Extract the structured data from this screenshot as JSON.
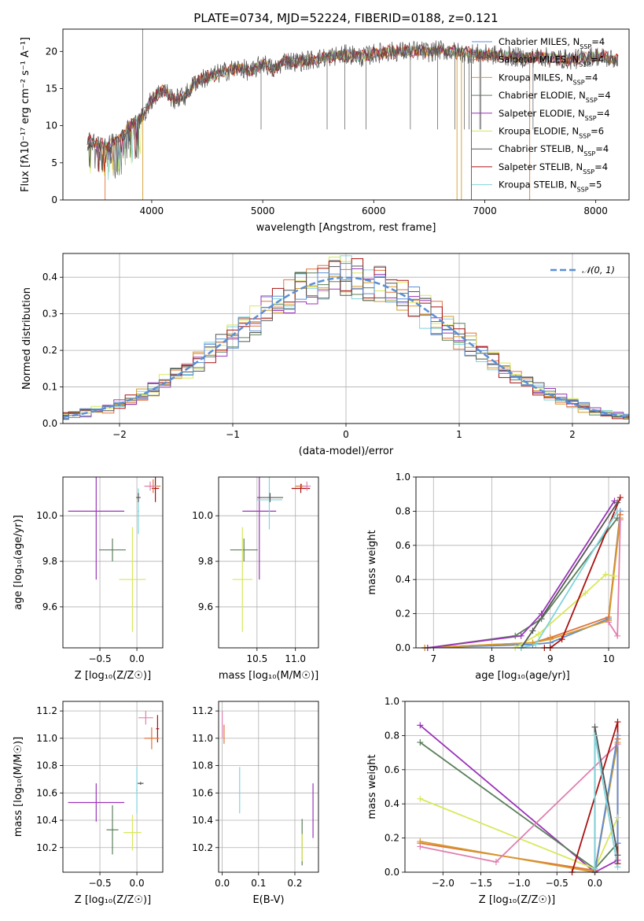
{
  "figure_title": "PLATE=0734, MJD=52224, FIBERID=0188, z=0.121",
  "colors": {
    "chabrier_miles": "#5b8fd4",
    "salpeter_miles": "#e0733a",
    "kroupa_miles": "#d49a2a",
    "chabrier_elodie": "#5a7f5a",
    "salpeter_elodie": "#9b34b8",
    "kroupa_elodie": "#d8e85a",
    "chabrier_stelib": "#555555",
    "salpeter_stelib": "#aa1111",
    "kroupa_stelib": "#7fd4dc",
    "pink": "#e080b0",
    "normal": "#5b8fd4",
    "grid": "#b0b0b0"
  },
  "chart_data": [
    {
      "id": "spectrum",
      "type": "line",
      "title": "PLATE=0734, MJD=52224, FIBERID=0188, z=0.121",
      "xlabel": "wavelength [Angstrom, rest frame]",
      "ylabel": "Flux [fλ10⁻¹⁷ erg cm⁻² s⁻¹ A⁻¹]",
      "xlim": [
        3200,
        8300
      ],
      "ylim": [
        0,
        23
      ],
      "xticks": [
        4000,
        5000,
        6000,
        7000,
        8000
      ],
      "yticks": [
        0,
        5,
        10,
        15,
        20
      ],
      "grid": false,
      "legend_position": "right",
      "legend": [
        {
          "label": "Chabrier MILES, N_SSP=4",
          "color_key": "chabrier_miles"
        },
        {
          "label": "Salpeter MILES, N_SSP=4",
          "color_key": "salpeter_miles"
        },
        {
          "label": "Kroupa MILES, N_SSP=4",
          "color_key": "kroupa_miles"
        },
        {
          "label": "Chabrier ELODIE, N_SSP=4",
          "color_key": "chabrier_elodie"
        },
        {
          "label": "Salpeter ELODIE, N_SSP=4",
          "color_key": "salpeter_elodie"
        },
        {
          "label": "Kroupa ELODIE, N_SSP=6",
          "color_key": "kroupa_elodie"
        },
        {
          "label": "Chabrier STELIB, N_SSP=4",
          "color_key": "chabrier_stelib"
        },
        {
          "label": "Salpeter STELIB, N_SSP=4",
          "color_key": "salpeter_stelib"
        },
        {
          "label": "Kroupa STELIB, N_SSP=5",
          "color_key": "kroupa_stelib"
        }
      ],
      "envelope": {
        "x": [
          3420,
          3500,
          3600,
          3700,
          3800,
          3900,
          4000,
          4100,
          4200,
          4300,
          4400,
          4500,
          4600,
          4700,
          4800,
          4900,
          5000,
          5100,
          5200,
          5300,
          5400,
          5500,
          5600,
          5700,
          5800,
          5900,
          6000,
          6100,
          6200,
          6300,
          6400,
          6500,
          6600,
          6700,
          6800,
          6900,
          7000,
          7100,
          7200,
          7300,
          7400,
          7500,
          7600,
          7700,
          7800,
          7900,
          8000,
          8100,
          8200
        ],
        "y": [
          8.0,
          7.5,
          7.2,
          8.2,
          10.0,
          11.0,
          13.5,
          15.0,
          13.5,
          14.0,
          16.0,
          16.5,
          17.0,
          17.5,
          17.8,
          17.2,
          18.5,
          17.5,
          18.8,
          18.6,
          18.8,
          19.0,
          19.3,
          19.5,
          19.6,
          19.2,
          19.7,
          19.9,
          20.0,
          20.0,
          20.1,
          19.9,
          20.2,
          20.0,
          19.8,
          19.7,
          19.6,
          19.5,
          19.4,
          19.2,
          19.1,
          19.3,
          19.1,
          19.0,
          18.9,
          19.2,
          19.4,
          19.1,
          18.9
        ]
      },
      "spikes_x": [
        3920,
        4985,
        5580,
        5740,
        5930,
        6330,
        6575,
        6730,
        6815,
        6860,
        6955,
        6965,
        7435
      ],
      "drop_x": [
        3580,
        3920,
        6750,
        6790,
        7405,
        6880
      ]
    },
    {
      "id": "residual-hist",
      "type": "line",
      "xlabel": "(data-model)/error",
      "ylabel": "Normed distribution",
      "xlim": [
        -2.5,
        2.5
      ],
      "ylim": [
        0,
        0.465
      ],
      "xticks": [
        -2,
        -1,
        0,
        1,
        2
      ],
      "yticks": [
        0.0,
        0.1,
        0.2,
        0.3,
        0.4
      ],
      "grid": true,
      "legend_position": "top-right",
      "legend": [
        {
          "label": "𝒩(0, 1)",
          "color_key": "normal"
        }
      ],
      "bin_width": 0.1
    },
    {
      "id": "age-vs-z",
      "type": "scatter",
      "xlabel": "Z [log₁₀(Z/Z☉)]",
      "ylabel": "age  [log₁₀(age/yr)]",
      "xlim": [
        -1.0,
        0.35
      ],
      "ylim": [
        9.42,
        10.17
      ],
      "xticks": [
        -0.5,
        0.0
      ],
      "yticks": [
        9.6,
        9.8,
        10.0
      ],
      "grid": true,
      "points": [
        {
          "color_key": "salpeter_elodie",
          "x": -0.55,
          "y": 10.02,
          "xerr": 0.38,
          "yerr": 0.3
        },
        {
          "color_key": "chabrier_elodie",
          "x": -0.33,
          "y": 9.85,
          "xerr": 0.18,
          "yerr": 0.05
        },
        {
          "color_key": "kroupa_elodie",
          "x": -0.06,
          "y": 9.72,
          "xerr": 0.18,
          "yerr": 0.23
        },
        {
          "color_key": "kroupa_stelib",
          "x": 0.02,
          "y": 10.02,
          "xerr": 0.01,
          "yerr": 0.1
        },
        {
          "color_key": "chabrier_stelib",
          "x": 0.02,
          "y": 10.08,
          "xerr": 0.03,
          "yerr": 0.02
        },
        {
          "color_key": "salpeter_stelib",
          "x": 0.25,
          "y": 10.12,
          "xerr": 0.05,
          "yerr": 0.06
        },
        {
          "color_key": "salpeter_miles",
          "x": 0.22,
          "y": 10.13,
          "xerr": 0.1,
          "yerr": 0.03
        },
        {
          "color_key": "pink",
          "x": 0.18,
          "y": 10.13,
          "xerr": 0.08,
          "yerr": 0.02
        }
      ]
    },
    {
      "id": "age-vs-mass",
      "type": "scatter",
      "xlabel": "mass [log₁₀(M/M☉)]",
      "ylabel": "",
      "xlim": [
        10.0,
        11.3
      ],
      "ylim": [
        9.42,
        10.17
      ],
      "xticks": [
        10.5,
        11.0
      ],
      "yticks": [
        9.6,
        9.8,
        10.0
      ],
      "grid": true,
      "points": [
        {
          "color_key": "salpeter_elodie",
          "x": 10.53,
          "y": 10.02,
          "xerr": 0.22,
          "yerr": 0.3
        },
        {
          "color_key": "chabrier_elodie",
          "x": 10.33,
          "y": 9.85,
          "xerr": 0.18,
          "yerr": 0.05
        },
        {
          "color_key": "kroupa_elodie",
          "x": 10.31,
          "y": 9.72,
          "xerr": 0.13,
          "yerr": 0.23
        },
        {
          "color_key": "kroupa_stelib",
          "x": 10.66,
          "y": 10.07,
          "xerr": 0.17,
          "yerr": 0.13
        },
        {
          "color_key": "chabrier_stelib",
          "x": 10.67,
          "y": 10.08,
          "xerr": 0.17,
          "yerr": 0.02
        },
        {
          "color_key": "salpeter_stelib",
          "x": 11.07,
          "y": 10.12,
          "xerr": 0.12,
          "yerr": 0.02
        },
        {
          "color_key": "salpeter_miles",
          "x": 11.08,
          "y": 10.13,
          "xerr": 0.08,
          "yerr": 0.01
        },
        {
          "color_key": "pink",
          "x": 11.15,
          "y": 10.13,
          "xerr": 0.05,
          "yerr": 0.02
        }
      ]
    },
    {
      "id": "massweight-vs-age",
      "type": "line",
      "xlabel": "age  [log₁₀(age/yr)]",
      "ylabel": "mass weight",
      "xlim": [
        6.7,
        10.35
      ],
      "ylim": [
        0,
        1.0
      ],
      "xticks": [
        7,
        8,
        9,
        10
      ],
      "yticks": [
        0.0,
        0.2,
        0.4,
        0.6,
        0.8,
        1.0
      ],
      "grid": true,
      "series": [
        {
          "color_key": "chabrier_miles",
          "x": [
            6.85,
            8.7,
            9.0,
            10.0,
            10.2
          ],
          "y": [
            0.0,
            0.02,
            0.03,
            0.17,
            0.8
          ]
        },
        {
          "color_key": "salpeter_miles",
          "x": [
            6.85,
            8.7,
            9.0,
            10.0,
            10.2
          ],
          "y": [
            0.0,
            0.03,
            0.06,
            0.18,
            0.78
          ]
        },
        {
          "color_key": "kroupa_miles",
          "x": [
            6.85,
            8.7,
            9.0,
            10.0,
            10.2
          ],
          "y": [
            0.0,
            0.03,
            0.05,
            0.16,
            0.76
          ]
        },
        {
          "color_key": "chabrier_elodie",
          "x": [
            6.9,
            8.4,
            8.85,
            10.15
          ],
          "y": [
            0.0,
            0.07,
            0.17,
            0.76
          ]
        },
        {
          "color_key": "salpeter_elodie",
          "x": [
            6.9,
            8.5,
            8.85,
            10.1
          ],
          "y": [
            0.0,
            0.07,
            0.2,
            0.86
          ]
        },
        {
          "color_key": "kroupa_elodie",
          "x": [
            8.4,
            8.8,
            9.6,
            9.95,
            10.1
          ],
          "y": [
            0.0,
            0.08,
            0.32,
            0.43,
            0.42
          ]
        },
        {
          "color_key": "chabrier_stelib",
          "x": [
            8.5,
            8.7,
            10.15
          ],
          "y": [
            0.0,
            0.1,
            0.85
          ]
        },
        {
          "color_key": "salpeter_stelib",
          "x": [
            8.9,
            9.0,
            9.2,
            10.2
          ],
          "y": [
            0.0,
            0.0,
            0.05,
            0.88
          ]
        },
        {
          "color_key": "kroupa_stelib",
          "x": [
            8.5,
            8.75,
            10.15
          ],
          "y": [
            0.0,
            0.02,
            0.8
          ]
        },
        {
          "color_key": "pink",
          "x": [
            10.0,
            10.15,
            10.2
          ],
          "y": [
            0.15,
            0.07,
            0.75
          ]
        }
      ]
    },
    {
      "id": "mass-vs-z",
      "type": "scatter",
      "xlabel": "Z [log₁₀(Z/Z☉)]",
      "ylabel": "mass [log₁₀(M/M☉)]",
      "xlim": [
        -1.0,
        0.35
      ],
      "ylim": [
        10.02,
        11.27
      ],
      "xticks": [
        -0.5,
        0.0
      ],
      "yticks": [
        10.2,
        10.4,
        10.6,
        10.8,
        11.0,
        11.2
      ],
      "grid": true,
      "points": [
        {
          "color_key": "salpeter_elodie",
          "x": -0.55,
          "y": 10.53,
          "xerr": 0.38,
          "yerr": 0.14
        },
        {
          "color_key": "chabrier_elodie",
          "x": -0.33,
          "y": 10.33,
          "xerr": 0.08,
          "yerr": 0.18
        },
        {
          "color_key": "kroupa_elodie",
          "x": -0.06,
          "y": 10.31,
          "xerr": 0.12,
          "yerr": 0.13
        },
        {
          "color_key": "kroupa_stelib",
          "x": 0.0,
          "y": 10.62,
          "xerr": 0.01,
          "yerr": 0.17
        },
        {
          "color_key": "chabrier_stelib",
          "x": 0.05,
          "y": 10.67,
          "xerr": 0.04,
          "yerr": 0.01
        },
        {
          "color_key": "salpeter_stelib",
          "x": 0.28,
          "y": 11.07,
          "xerr": 0.02,
          "yerr": 0.1
        },
        {
          "color_key": "salpeter_miles",
          "x": 0.2,
          "y": 11.0,
          "xerr": 0.1,
          "yerr": 0.08
        },
        {
          "color_key": "pink",
          "x": 0.12,
          "y": 11.15,
          "xerr": 0.1,
          "yerr": 0.05
        }
      ]
    },
    {
      "id": "mass-vs-ebv",
      "type": "scatter",
      "xlabel": "E(B-V)",
      "ylabel": "",
      "xlim": [
        -0.01,
        0.265
      ],
      "ylim": [
        10.02,
        11.27
      ],
      "xticks": [
        0.0,
        0.1,
        0.2
      ],
      "yticks": [
        10.2,
        10.4,
        10.6,
        10.8,
        11.0,
        11.2
      ],
      "grid": true,
      "points": [
        {
          "color_key": "pink",
          "x": 0.0,
          "y": 11.1,
          "xerr": 0,
          "yerr": 0.1
        },
        {
          "color_key": "salpeter_miles",
          "x": 0.005,
          "y": 11.03,
          "xerr": 0,
          "yerr": 0.07
        },
        {
          "color_key": "kroupa_stelib",
          "x": 0.048,
          "y": 10.62,
          "xerr": 0,
          "yerr": 0.17
        },
        {
          "color_key": "chabrier_elodie",
          "x": 0.22,
          "y": 10.24,
          "xerr": 0,
          "yerr": 0.17
        },
        {
          "color_key": "kroupa_elodie",
          "x": 0.22,
          "y": 10.2,
          "xerr": 0,
          "yerr": 0.1
        },
        {
          "color_key": "salpeter_elodie",
          "x": 0.25,
          "y": 10.47,
          "xerr": 0,
          "yerr": 0.2
        }
      ]
    },
    {
      "id": "massweight-vs-z",
      "type": "line",
      "xlabel": "Z [log₁₀(Z/Z☉)]",
      "ylabel": "mass weight",
      "xlim": [
        -2.5,
        0.45
      ],
      "ylim": [
        0,
        1.0
      ],
      "xticks": [
        -2.0,
        -1.5,
        -1.0,
        -0.5,
        0.0
      ],
      "yticks": [
        0.0,
        0.2,
        0.4,
        0.6,
        0.8,
        1.0
      ],
      "grid": true,
      "series": [
        {
          "color_key": "salpeter_elodie",
          "x": [
            -2.3,
            0.0,
            0.3
          ],
          "y": [
            0.86,
            0.0,
            0.07
          ]
        },
        {
          "color_key": "chabrier_elodie",
          "x": [
            -2.3,
            0.0,
            0.3
          ],
          "y": [
            0.76,
            0.02,
            0.17
          ]
        },
        {
          "color_key": "kroupa_elodie",
          "x": [
            -2.3,
            0.0,
            0.3
          ],
          "y": [
            0.43,
            0.02,
            0.32
          ]
        },
        {
          "color_key": "salpeter_miles",
          "x": [
            -2.3,
            0.0,
            0.3
          ],
          "y": [
            0.17,
            0.01,
            0.78
          ]
        },
        {
          "color_key": "kroupa_miles",
          "x": [
            -2.3,
            0.0,
            0.3
          ],
          "y": [
            0.18,
            0.0,
            0.76
          ]
        },
        {
          "color_key": "pink",
          "x": [
            -2.3,
            -1.3,
            0.3
          ],
          "y": [
            0.15,
            0.06,
            0.75
          ]
        },
        {
          "color_key": "salpeter_stelib",
          "x": [
            -0.3,
            0.3,
            0.3
          ],
          "y": [
            0.0,
            0.88,
            0.05
          ]
        },
        {
          "color_key": "chabrier_miles",
          "x": [
            0.0,
            0.3,
            0.3
          ],
          "y": [
            0.0,
            0.8,
            0.17
          ]
        },
        {
          "color_key": "chabrier_stelib",
          "x": [
            0.0,
            0.0,
            0.3
          ],
          "y": [
            0.0,
            0.85,
            0.1
          ]
        },
        {
          "color_key": "kroupa_stelib",
          "x": [
            0.0,
            0.0,
            0.3
          ],
          "y": [
            0.02,
            0.8,
            0.03
          ]
        }
      ]
    }
  ]
}
